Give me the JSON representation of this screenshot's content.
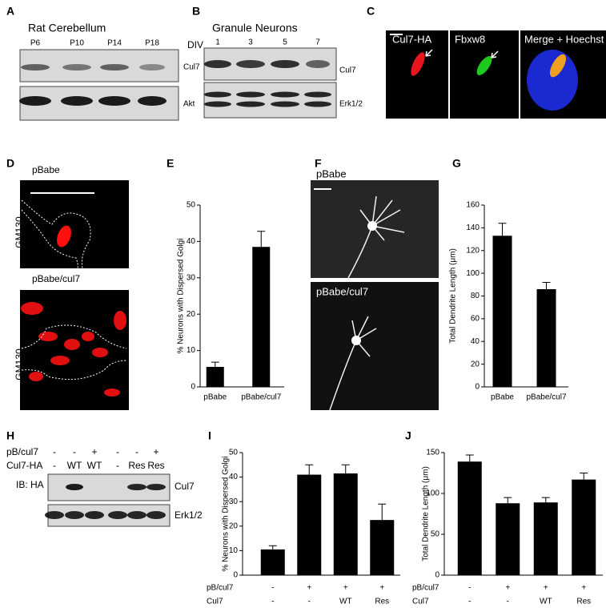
{
  "panel_labels": [
    "A",
    "B",
    "C",
    "D",
    "E",
    "F",
    "G",
    "H",
    "I",
    "J"
  ],
  "panel_a": {
    "title": "Rat Cerebellum",
    "lanes": [
      "P6",
      "P10",
      "P14",
      "P18"
    ],
    "blot_labels": [
      "Cul7",
      "Akt"
    ]
  },
  "panel_b": {
    "title": "Granule Neurons",
    "lane_axis": "DIV",
    "lanes": [
      "1",
      "3",
      "5",
      "7"
    ],
    "blot_labels": [
      "Cul7",
      "Erk1/2"
    ]
  },
  "panel_c": {
    "channels": [
      "Cul7-HA",
      "Fbxw8",
      "Merge + Hoechst"
    ]
  },
  "panel_d": {
    "conditions": [
      "pBabe",
      "pBabe/cul7"
    ],
    "stain": "GM130"
  },
  "panel_f": {
    "conditions": [
      "pBabe",
      "pBabe/cul7"
    ]
  },
  "panel_h": {
    "rows": [
      {
        "name": "pB/cul7",
        "lanes": [
          "-",
          "-",
          "+",
          "-",
          "-",
          "+"
        ]
      },
      {
        "name": "Cul7-HA",
        "lanes": [
          "-",
          "WT",
          "WT",
          "-",
          "Res",
          "Res"
        ]
      }
    ],
    "probe": "IB: HA",
    "blot_labels": [
      "Cul7",
      "Erk1/2"
    ]
  },
  "chart_data": [
    {
      "type": "bar",
      "ylabel": "% Neurons with Dispersed Golgi",
      "categories": [
        "pBabe",
        "pBabe/cul7"
      ],
      "values": [
        5.5,
        38.5
      ],
      "errors": [
        1.3,
        4.3
      ],
      "color": "#000000",
      "ylim": [
        0,
        50
      ],
      "yticks": [
        0,
        10,
        20,
        30,
        40,
        50
      ]
    },
    {
      "type": "bar",
      "ylabel": "Total Dendrite Length (μm)",
      "categories": [
        "pBabe",
        "pBabe/cul7"
      ],
      "values": [
        133,
        86
      ],
      "errors": [
        11,
        6
      ],
      "color": "#000000",
      "ylim": [
        0,
        160
      ],
      "yticks": [
        0,
        20,
        40,
        60,
        80,
        100,
        120,
        140,
        160
      ]
    },
    {
      "type": "bar",
      "ylabel": "% Neurons with Dispersed Golgi",
      "category_rows": [
        {
          "name": "pB/cul7",
          "labels": [
            "-",
            "+",
            "+",
            "+"
          ]
        },
        {
          "name": "Cul7",
          "labels": [
            "-",
            "-",
            "WT",
            "Res"
          ]
        }
      ],
      "values": [
        10.5,
        41,
        41.5,
        22.5
      ],
      "errors": [
        1.5,
        4,
        3.5,
        6.5
      ],
      "color": "#000000",
      "ylim": [
        0,
        50
      ],
      "yticks": [
        0,
        10,
        20,
        30,
        40,
        50
      ]
    },
    {
      "type": "bar",
      "ylabel": "Total Dendrite Length (μm)",
      "category_rows": [
        {
          "name": "pB/cul7",
          "labels": [
            "-",
            "+",
            "+",
            "+"
          ]
        },
        {
          "name": "Cul7",
          "labels": [
            "-",
            "-",
            "WT",
            "Res"
          ]
        }
      ],
      "values": [
        139,
        88,
        89,
        117
      ],
      "errors": [
        8,
        7,
        6,
        8
      ],
      "color": "#000000",
      "ylim": [
        0,
        150
      ],
      "yticks": [
        0,
        50,
        100,
        150
      ]
    }
  ]
}
